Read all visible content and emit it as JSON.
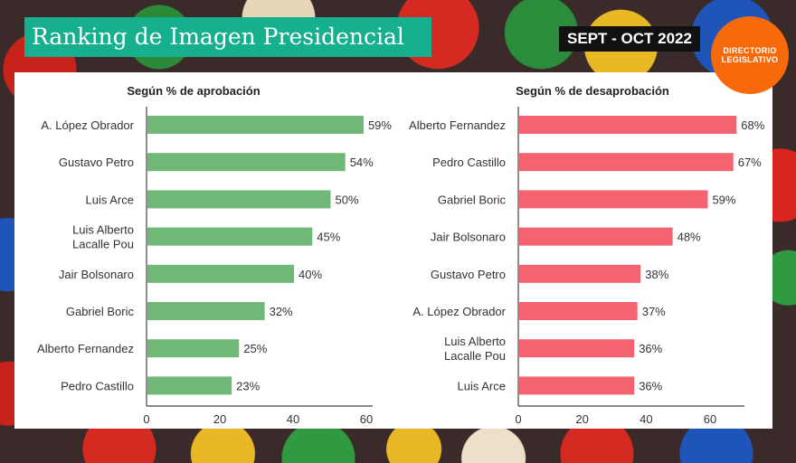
{
  "header": {
    "title": "Ranking de Imagen Presidencial",
    "period": "SEPT - OCT 2022",
    "logo_line1": "DIRECTORIO",
    "logo_line2": "LEGISLATIVO"
  },
  "colors": {
    "title_bg": "#17b08f",
    "approval_bar": "#6fb877",
    "disapproval_bar": "#f46470",
    "logo_bg": "#f76a0c"
  },
  "chart_data": [
    {
      "type": "bar",
      "orientation": "horizontal",
      "title": "Según % de aprobación",
      "categories": [
        "A. López Obrador",
        "Gustavo Petro",
        "Luis Arce",
        "Luis Alberto\nLacalle Pou",
        "Jair Bolsonaro",
        "Gabriel Boric",
        "Alberto Fernandez",
        "Pedro Castillo"
      ],
      "values": [
        59,
        54,
        50,
        45,
        40,
        32,
        25,
        23
      ],
      "labels": [
        "59%",
        "54%",
        "50%",
        "45%",
        "40%",
        "32%",
        "25%",
        "23%"
      ],
      "xticks": [
        "0",
        "20",
        "40",
        "60"
      ],
      "xlim": [
        0,
        62
      ],
      "xlabel": "",
      "ylabel": "",
      "grid": false
    },
    {
      "type": "bar",
      "orientation": "horizontal",
      "title": "Según % de desaprobación",
      "categories": [
        "Alberto Fernandez",
        "Pedro Castillo",
        "Gabriel Boric",
        "Jair Bolsonaro",
        "Gustavo Petro",
        "A. López Obrador",
        "Luis Alberto\nLacalle Pou",
        "Luis Arce"
      ],
      "values": [
        68,
        67,
        59,
        48,
        38,
        37,
        36,
        36
      ],
      "labels": [
        "68%",
        "67%",
        "59%",
        "48%",
        "38%",
        "37%",
        "36%",
        "36%"
      ],
      "xticks": [
        "0",
        "20",
        "40",
        "60"
      ],
      "xlim": [
        0,
        71
      ],
      "xlabel": "",
      "ylabel": "",
      "grid": false
    }
  ]
}
